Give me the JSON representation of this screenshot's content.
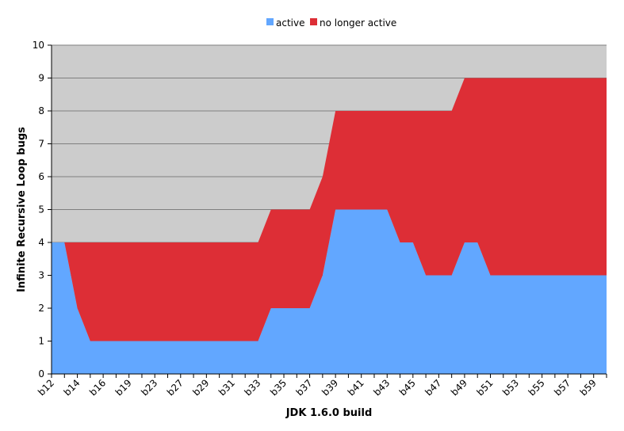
{
  "chart_data": {
    "type": "area",
    "stacked": true,
    "xlabel": "JDK 1.6.0 build",
    "ylabel": "Infinite Recursive Loop bugs",
    "ylim": [
      0,
      10
    ],
    "yticks": [
      0,
      1,
      2,
      3,
      4,
      5,
      6,
      7,
      8,
      9,
      10
    ],
    "grid": true,
    "legend_position": "top",
    "x": [
      "b12",
      "b13",
      "b14",
      "b15",
      "b16",
      "b17",
      "b19",
      "b21",
      "b23",
      "b25",
      "b27",
      "b28",
      "b29",
      "b30",
      "b31",
      "b32",
      "b33",
      "b34",
      "b35",
      "b36",
      "b37",
      "b38",
      "b39",
      "b40",
      "b41",
      "b42",
      "b43",
      "b44",
      "b45",
      "b46",
      "b47",
      "b48",
      "b49",
      "b50",
      "b51",
      "b52",
      "b53",
      "b54",
      "b55",
      "b56",
      "b57",
      "b58",
      "b59",
      "b60"
    ],
    "x_tick_labels": [
      "b12",
      "b14",
      "b16",
      "b19",
      "b23",
      "b27",
      "b29",
      "b31",
      "b33",
      "b35",
      "b37",
      "b39",
      "b41",
      "b43",
      "b45",
      "b47",
      "b49",
      "b51",
      "b53",
      "b55",
      "b57",
      "b59"
    ],
    "series": [
      {
        "name": "active",
        "color": "#62a7ff",
        "values": [
          4,
          4,
          2,
          1,
          1,
          1,
          1,
          1,
          1,
          1,
          1,
          1,
          1,
          1,
          1,
          1,
          1,
          2,
          2,
          2,
          2,
          3,
          5,
          5,
          5,
          5,
          5,
          4,
          4,
          3,
          3,
          3,
          4,
          4,
          3,
          3,
          3,
          3,
          3,
          3,
          3,
          3,
          3,
          3
        ]
      },
      {
        "name": "no longer active",
        "color": "#dd2e36",
        "values": [
          0,
          0,
          2,
          3,
          3,
          3,
          3,
          3,
          3,
          3,
          3,
          3,
          3,
          3,
          3,
          3,
          3,
          3,
          3,
          3,
          3,
          3,
          3,
          3,
          3,
          3,
          3,
          4,
          4,
          5,
          5,
          5,
          5,
          5,
          6,
          6,
          6,
          6,
          6,
          6,
          6,
          6,
          6,
          6
        ]
      }
    ],
    "background_color": "#cccccc",
    "gridline_color": "#7f7f7f"
  }
}
